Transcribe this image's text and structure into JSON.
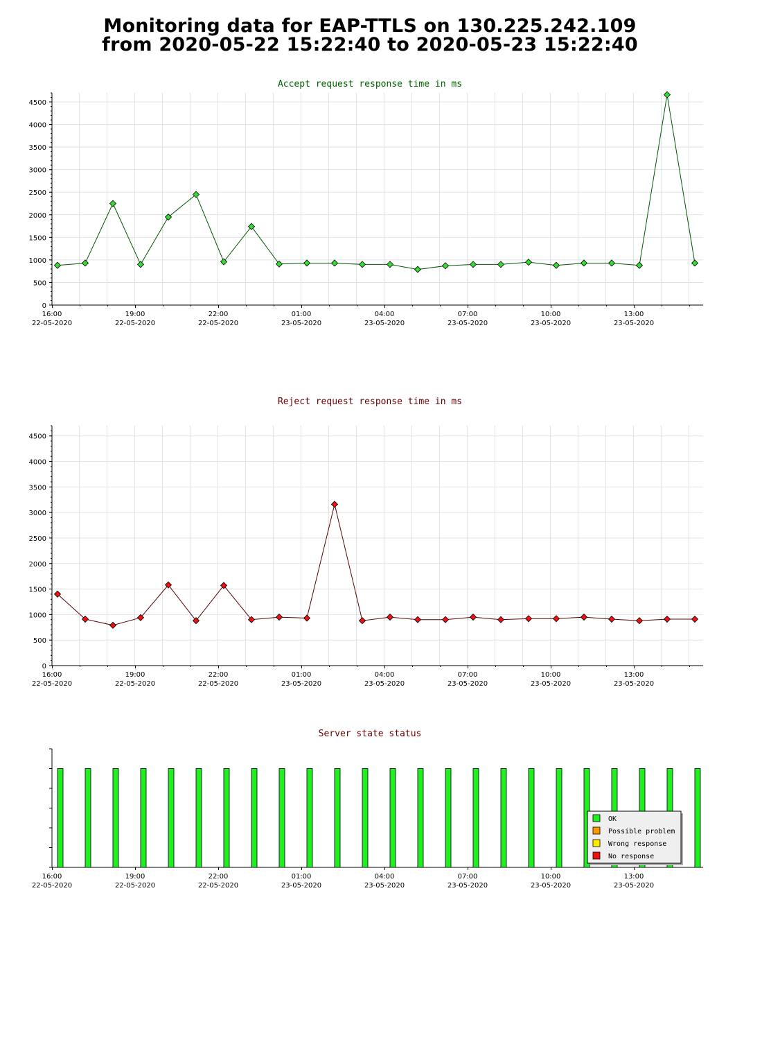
{
  "title": {
    "line1": "Monitoring data for EAP-TTLS on 130.225.242.109",
    "line2": "from 2020-05-22 15:22:40 to 2020-05-23 15:22:40"
  },
  "x_ticks": [
    {
      "time": "16:00",
      "date": "22-05-2020",
      "hour": 0
    },
    {
      "time": "19:00",
      "date": "22-05-2020",
      "hour": 3
    },
    {
      "time": "22:00",
      "date": "22-05-2020",
      "hour": 6
    },
    {
      "time": "01:00",
      "date": "23-05-2020",
      "hour": 9
    },
    {
      "time": "04:00",
      "date": "23-05-2020",
      "hour": 12
    },
    {
      "time": "07:00",
      "date": "23-05-2020",
      "hour": 15
    },
    {
      "time": "10:00",
      "date": "23-05-2020",
      "hour": 18
    },
    {
      "time": "13:00",
      "date": "23-05-2020",
      "hour": 21
    }
  ],
  "chart_data": [
    {
      "type": "line",
      "title": "Accept request response time in ms",
      "title_color": "#006400",
      "line_color": "#005500",
      "marker_color": "#33dd33",
      "ylim": [
        0,
        4700
      ],
      "y_ticks": [
        0,
        500,
        1000,
        1500,
        2000,
        2500,
        3000,
        3500,
        4000,
        4500
      ],
      "x_hours": [
        0.2,
        1.2,
        2.2,
        3.2,
        4.2,
        5.2,
        6.2,
        7.2,
        8.2,
        9.2,
        10.2,
        11.2,
        12.2,
        13.2,
        14.2,
        15.2,
        16.2,
        17.2,
        18.2,
        19.2,
        20.2,
        21.2,
        22.2,
        23.2
      ],
      "values": [
        880,
        930,
        2250,
        900,
        1950,
        2450,
        960,
        1740,
        910,
        930,
        930,
        900,
        900,
        790,
        870,
        900,
        900,
        950,
        880,
        930,
        930,
        880,
        4660,
        930
      ]
    },
    {
      "type": "line",
      "title": "Reject request response time in ms",
      "title_color": "#660000",
      "line_color": "#550000",
      "marker_color": "#ee1111",
      "ylim": [
        0,
        4700
      ],
      "y_ticks": [
        0,
        500,
        1000,
        1500,
        2000,
        2500,
        3000,
        3500,
        4000,
        4500
      ],
      "x_hours": [
        0.2,
        1.2,
        2.2,
        3.2,
        4.2,
        5.2,
        6.2,
        7.2,
        8.2,
        9.2,
        10.2,
        11.2,
        12.2,
        13.2,
        14.2,
        15.2,
        16.2,
        17.2,
        18.2,
        19.2,
        20.2,
        21.2,
        22.2,
        23.2
      ],
      "values": [
        1400,
        910,
        790,
        940,
        1580,
        880,
        1570,
        900,
        950,
        930,
        3160,
        880,
        950,
        900,
        900,
        950,
        900,
        920,
        920,
        950,
        910,
        880,
        910,
        910
      ]
    },
    {
      "type": "bar",
      "title": "Server state status",
      "title_color": "#660000",
      "bar_color": "#22ee22",
      "x_hours": [
        0.2,
        1.2,
        2.2,
        3.2,
        4.2,
        5.2,
        6.2,
        7.2,
        8.2,
        9.2,
        10.2,
        11.2,
        12.2,
        13.2,
        14.2,
        15.2,
        16.2,
        17.2,
        18.2,
        19.2,
        20.2,
        21.2,
        22.2,
        23.2
      ],
      "values": [
        5,
        5,
        5,
        5,
        5,
        5,
        5,
        5,
        5,
        5,
        5,
        5,
        5,
        5,
        5,
        5,
        5,
        5,
        5,
        5,
        5,
        5,
        5,
        5
      ],
      "ylim": [
        0,
        6
      ],
      "legend": [
        {
          "label": "OK",
          "color": "#22ee22"
        },
        {
          "label": "Possible problem",
          "color": "#ff9900"
        },
        {
          "label": "Wrong response",
          "color": "#ffee00"
        },
        {
          "label": "No response",
          "color": "#ee1111"
        }
      ],
      "legend_position": "bottom-right"
    }
  ]
}
